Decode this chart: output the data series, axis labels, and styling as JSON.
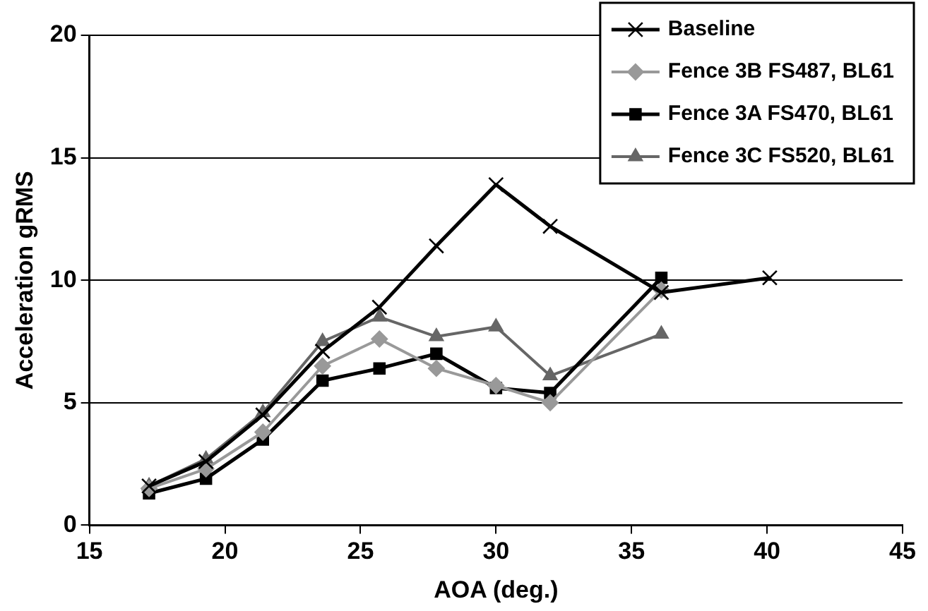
{
  "chart_data": {
    "type": "line",
    "xlabel": "AOA (deg.)",
    "ylabel": "Acceleration gRMS",
    "xlim": [
      15,
      45
    ],
    "xticks": [
      15,
      20,
      25,
      30,
      35,
      40,
      45
    ],
    "ylim": [
      0,
      20
    ],
    "yticks": [
      0,
      5,
      10,
      15,
      20
    ],
    "grid": "y",
    "legend": "top right",
    "line_style": "solid",
    "series": [
      {
        "name": "Baseline",
        "color": "#000000",
        "marker": "cross",
        "x": [
          17.2,
          19.3,
          21.4,
          23.6,
          25.7,
          27.8,
          30,
          32,
          36.1,
          40.1
        ],
        "values": [
          1.6,
          2.6,
          4.5,
          7.1,
          8.9,
          11.4,
          13.9,
          12.2,
          9.5,
          10.1
        ]
      },
      {
        "name": "Fence 3B FS487, BL61",
        "color": "#999999",
        "marker": "diamond",
        "x": [
          17.2,
          19.3,
          21.4,
          23.6,
          25.7,
          27.8,
          30,
          32,
          36.1
        ],
        "values": [
          1.5,
          2.3,
          3.8,
          6.5,
          7.6,
          6.4,
          5.7,
          5.0,
          9.6
        ]
      },
      {
        "name": "Fence 3A FS470, BL61",
        "color": "#000000",
        "marker": "square",
        "x": [
          17.2,
          19.3,
          21.4,
          23.6,
          25.7,
          27.8,
          30,
          32,
          36.1
        ],
        "values": [
          1.3,
          1.9,
          3.5,
          5.9,
          6.4,
          7.0,
          5.6,
          5.4,
          10.1
        ]
      },
      {
        "name": "Fence 3C FS520, BL61",
        "color": "#666666",
        "marker": "triangle",
        "x": [
          17.2,
          19.3,
          21.4,
          23.6,
          25.7,
          27.8,
          30,
          32,
          36.1
        ],
        "values": [
          1.6,
          2.7,
          4.6,
          7.5,
          8.5,
          7.7,
          8.1,
          6.1,
          7.8
        ]
      }
    ]
  }
}
